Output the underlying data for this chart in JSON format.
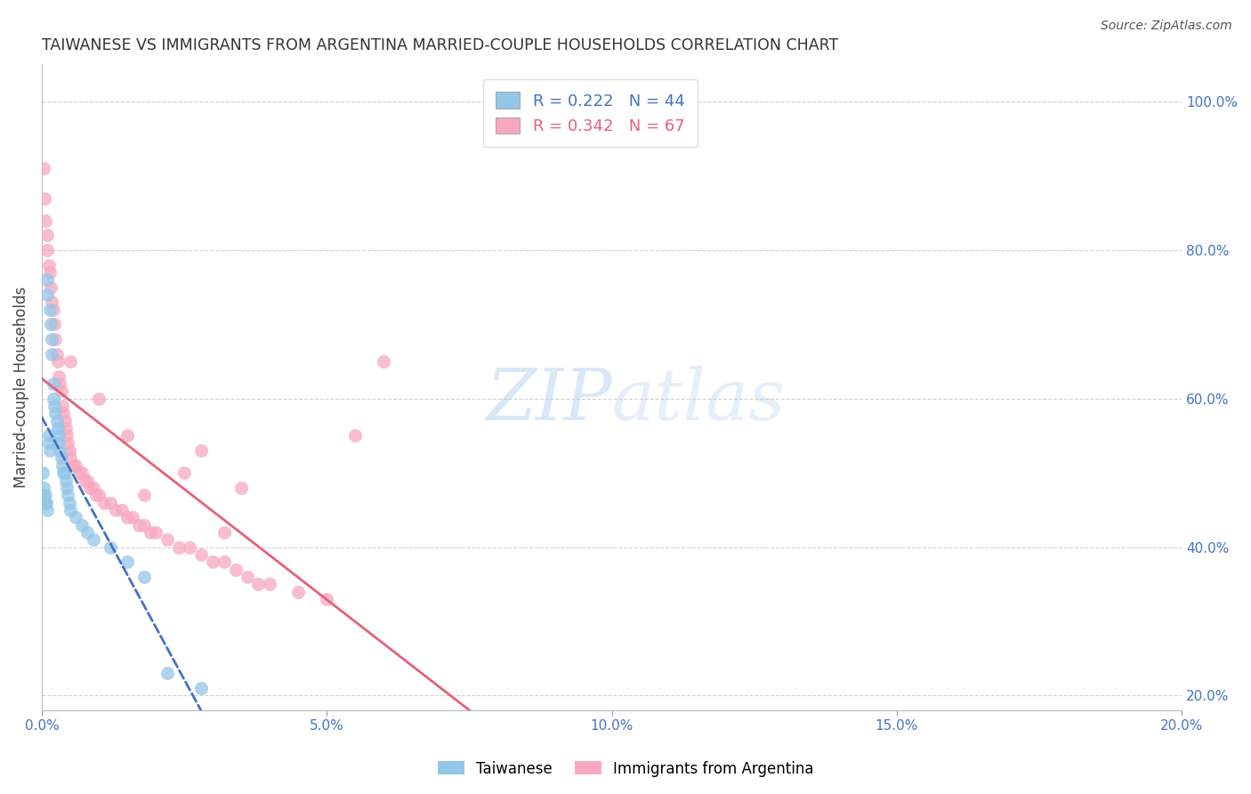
{
  "title": "TAIWANESE VS IMMIGRANTS FROM ARGENTINA MARRIED-COUPLE HOUSEHOLDS CORRELATION CHART",
  "source": "Source: ZipAtlas.com",
  "ylabel": "Married-couple Households",
  "xlabel": "",
  "watermark": "ZIPAtlas",
  "blue_label": "Taiwanese",
  "pink_label": "Immigrants from Argentina",
  "blue_R": 0.222,
  "blue_N": 44,
  "pink_R": 0.342,
  "pink_N": 67,
  "blue_color": "#93c6e8",
  "pink_color": "#f8a8be",
  "blue_line_color": "#4472c4",
  "pink_line_color": "#e8607a",
  "xmin": 0.0,
  "xmax": 0.2,
  "ymin": 0.18,
  "ymax": 1.05,
  "right_yticks": [
    0.2,
    0.4,
    0.6,
    0.8,
    1.0
  ],
  "right_yticklabels": [
    "20.0%",
    "40.0%",
    "60.0%",
    "80.0%",
    "100.0%"
  ],
  "xticks": [
    0.0,
    0.05,
    0.1,
    0.15,
    0.2
  ],
  "xticklabels": [
    "0.0%",
    "5.0%",
    "10.0%",
    "15.0%",
    "20.0%"
  ],
  "blue_x": [
    0.0002,
    0.0003,
    0.0004,
    0.0005,
    0.0006,
    0.0007,
    0.0008,
    0.0009,
    0.001,
    0.001,
    0.0012,
    0.0013,
    0.0014,
    0.0015,
    0.0016,
    0.0017,
    0.0018,
    0.002,
    0.002,
    0.0022,
    0.0024,
    0.0026,
    0.0028,
    0.003,
    0.003,
    0.0032,
    0.0034,
    0.0036,
    0.0038,
    0.004,
    0.0042,
    0.0044,
    0.0046,
    0.0048,
    0.005,
    0.006,
    0.007,
    0.008,
    0.009,
    0.012,
    0.015,
    0.018,
    0.022,
    0.028
  ],
  "blue_y": [
    0.5,
    0.48,
    0.47,
    0.46,
    0.47,
    0.46,
    0.46,
    0.45,
    0.76,
    0.74,
    0.55,
    0.54,
    0.53,
    0.72,
    0.7,
    0.68,
    0.66,
    0.62,
    0.6,
    0.59,
    0.58,
    0.57,
    0.56,
    0.55,
    0.54,
    0.53,
    0.52,
    0.51,
    0.5,
    0.5,
    0.49,
    0.48,
    0.47,
    0.46,
    0.45,
    0.44,
    0.43,
    0.42,
    0.41,
    0.4,
    0.38,
    0.36,
    0.23,
    0.21
  ],
  "pink_x": [
    0.0003,
    0.0005,
    0.0007,
    0.0009,
    0.001,
    0.0012,
    0.0014,
    0.0016,
    0.0018,
    0.002,
    0.0022,
    0.0024,
    0.0026,
    0.0028,
    0.003,
    0.0032,
    0.0034,
    0.0036,
    0.0038,
    0.004,
    0.0042,
    0.0044,
    0.0046,
    0.0048,
    0.005,
    0.0055,
    0.006,
    0.0065,
    0.007,
    0.0075,
    0.008,
    0.0085,
    0.009,
    0.0095,
    0.01,
    0.011,
    0.012,
    0.013,
    0.014,
    0.015,
    0.016,
    0.017,
    0.018,
    0.019,
    0.02,
    0.022,
    0.024,
    0.026,
    0.028,
    0.03,
    0.032,
    0.034,
    0.036,
    0.038,
    0.04,
    0.005,
    0.01,
    0.015,
    0.045,
    0.05,
    0.035,
    0.025,
    0.06,
    0.055,
    0.028,
    0.032,
    0.018
  ],
  "pink_y": [
    0.91,
    0.87,
    0.84,
    0.82,
    0.8,
    0.78,
    0.77,
    0.75,
    0.73,
    0.72,
    0.7,
    0.68,
    0.66,
    0.65,
    0.63,
    0.62,
    0.61,
    0.59,
    0.58,
    0.57,
    0.56,
    0.55,
    0.54,
    0.53,
    0.52,
    0.51,
    0.51,
    0.5,
    0.5,
    0.49,
    0.49,
    0.48,
    0.48,
    0.47,
    0.47,
    0.46,
    0.46,
    0.45,
    0.45,
    0.44,
    0.44,
    0.43,
    0.43,
    0.42,
    0.42,
    0.41,
    0.4,
    0.4,
    0.39,
    0.38,
    0.38,
    0.37,
    0.36,
    0.35,
    0.35,
    0.65,
    0.6,
    0.55,
    0.34,
    0.33,
    0.48,
    0.5,
    0.65,
    0.55,
    0.53,
    0.42,
    0.47
  ],
  "background_color": "#ffffff",
  "grid_color": "#d0d0d0",
  "title_color": "#333333",
  "axis_color": "#4472c4",
  "right_axis_label_color": "#4472c4"
}
